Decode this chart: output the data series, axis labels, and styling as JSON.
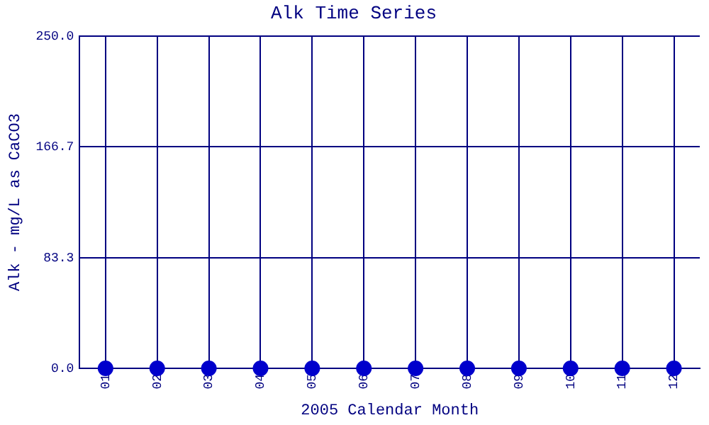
{
  "chart_data": {
    "type": "scatter",
    "title": "Alk Time Series",
    "xlabel": "2005 Calendar Month",
    "ylabel": "Alk - mg/L as CaCO3",
    "categories": [
      "01",
      "02",
      "03",
      "04",
      "05",
      "06",
      "07",
      "08",
      "09",
      "10",
      "11",
      "12"
    ],
    "values": [
      0,
      0,
      0,
      0,
      0,
      0,
      0,
      0,
      0,
      0,
      0,
      0
    ],
    "color": "#0000cc",
    "ylim": [
      0,
      250
    ],
    "yticks": [
      {
        "value": 0,
        "label": "0.0"
      },
      83.3,
      166.7,
      {
        "value": 250,
        "label": "250.0"
      }
    ],
    "grid": true,
    "marker": "circle"
  }
}
